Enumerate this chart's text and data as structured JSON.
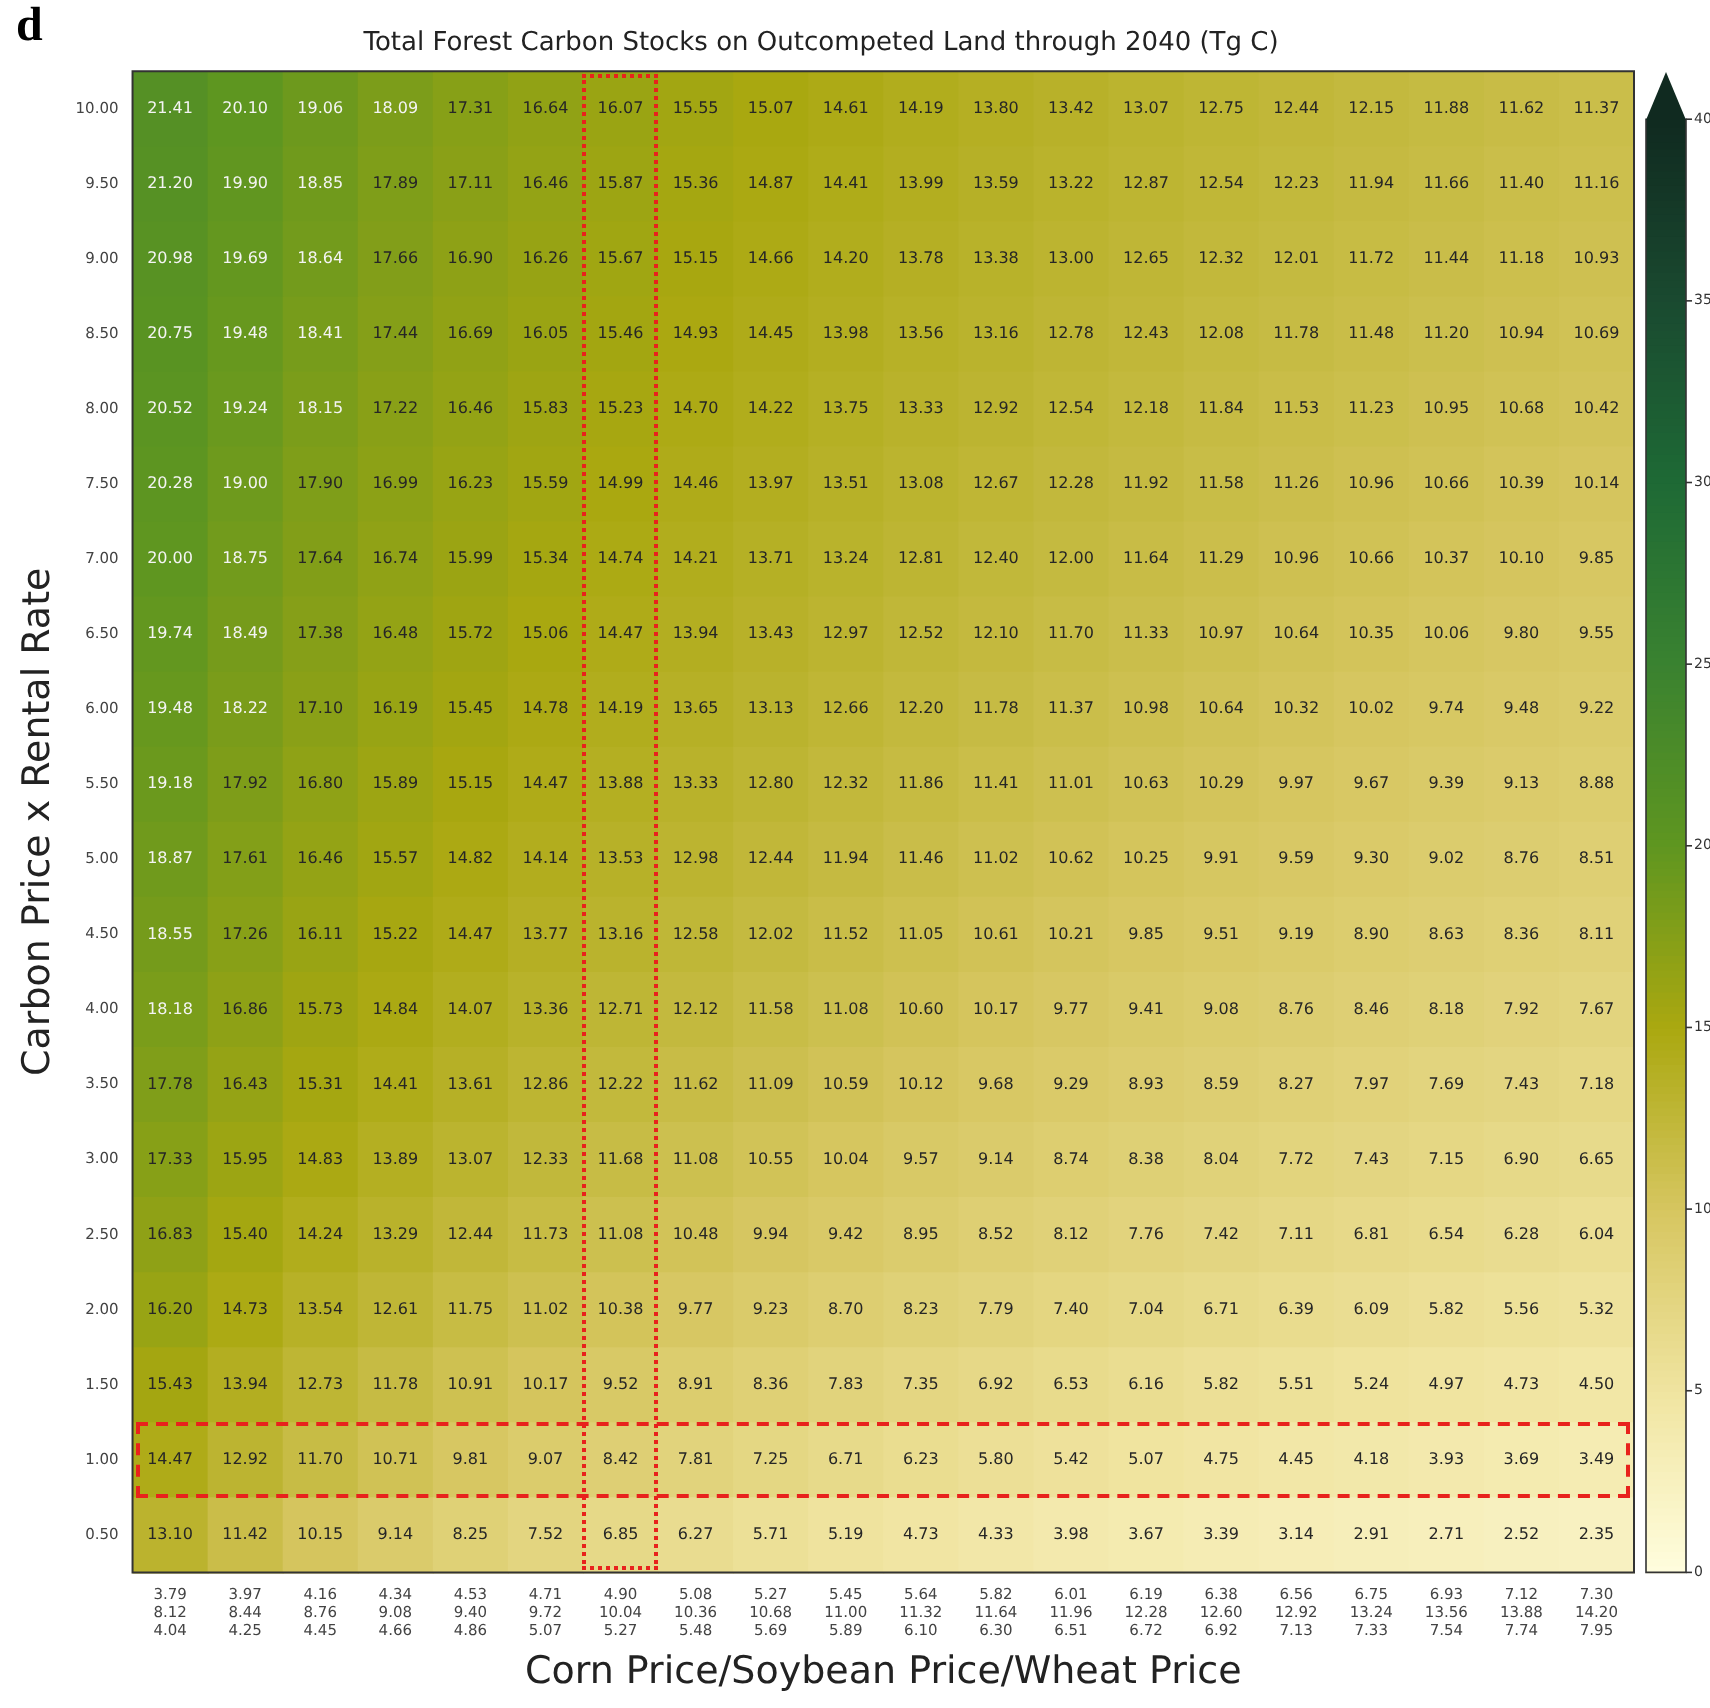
{
  "chart_data": {
    "type": "heatmap",
    "title": "Total Forest Carbon Stocks on Outcompeted Land through 2040 (Tg C)",
    "xlabel": "Corn Price/Soybean Price/Wheat Price",
    "ylabel": "Carbon Price x Rental Rate",
    "annotations": [
      "d"
    ],
    "categories": [
      "3.79\n8.12\n4.04",
      "3.97\n8.44\n4.25",
      "4.16\n8.76\n4.45",
      "4.34\n9.08\n4.66",
      "4.53\n9.40\n4.86",
      "4.71\n9.72\n5.07",
      "4.90\n10.04\n5.27",
      "5.08\n10.36\n5.48",
      "5.27\n10.68\n5.69",
      "5.45\n11.00\n5.89",
      "5.64\n11.32\n6.10",
      "5.82\n11.64\n6.30",
      "6.01\n11.96\n6.51",
      "6.19\n12.28\n6.72",
      "6.38\n12.60\n6.92",
      "6.56\n12.92\n7.13",
      "6.75\n13.24\n7.33",
      "6.93\n13.56\n7.54",
      "7.12\n13.88\n7.74",
      "7.30\n14.20\n7.95"
    ],
    "y_categories": [
      "10.00",
      "9.50",
      "9.00",
      "8.50",
      "8.00",
      "7.50",
      "7.00",
      "6.50",
      "6.00",
      "5.50",
      "5.00",
      "4.50",
      "4.00",
      "3.50",
      "3.00",
      "2.50",
      "2.00",
      "1.50",
      "1.00",
      "0.50"
    ],
    "cells": [
      [
        21.41,
        20.1,
        19.06,
        18.09,
        17.31,
        16.64,
        16.07,
        15.55,
        15.07,
        14.61,
        14.19,
        13.8,
        13.42,
        13.07,
        12.75,
        12.44,
        12.15,
        11.88,
        11.62,
        11.37
      ],
      [
        21.2,
        19.9,
        18.85,
        17.89,
        17.11,
        16.46,
        15.87,
        15.36,
        14.87,
        14.41,
        13.99,
        13.59,
        13.22,
        12.87,
        12.54,
        12.23,
        11.94,
        11.66,
        11.4,
        11.16
      ],
      [
        20.98,
        19.69,
        18.64,
        17.66,
        16.9,
        16.26,
        15.67,
        15.15,
        14.66,
        14.2,
        13.78,
        13.38,
        13.0,
        12.65,
        12.32,
        12.01,
        11.72,
        11.44,
        11.18,
        10.93
      ],
      [
        20.75,
        19.48,
        18.41,
        17.44,
        16.69,
        16.05,
        15.46,
        14.93,
        14.45,
        13.98,
        13.56,
        13.16,
        12.78,
        12.43,
        12.08,
        11.78,
        11.48,
        11.2,
        10.94,
        10.69
      ],
      [
        20.52,
        19.24,
        18.15,
        17.22,
        16.46,
        15.83,
        15.23,
        14.7,
        14.22,
        13.75,
        13.33,
        12.92,
        12.54,
        12.18,
        11.84,
        11.53,
        11.23,
        10.95,
        10.68,
        10.42
      ],
      [
        20.28,
        19.0,
        17.9,
        16.99,
        16.23,
        15.59,
        14.99,
        14.46,
        13.97,
        13.51,
        13.08,
        12.67,
        12.28,
        11.92,
        11.58,
        11.26,
        10.96,
        10.66,
        10.39,
        10.14
      ],
      [
        20.0,
        18.75,
        17.64,
        16.74,
        15.99,
        15.34,
        14.74,
        14.21,
        13.71,
        13.24,
        12.81,
        12.4,
        12.0,
        11.64,
        11.29,
        10.96,
        10.66,
        10.37,
        10.1,
        9.85
      ],
      [
        19.74,
        18.49,
        17.38,
        16.48,
        15.72,
        15.06,
        14.47,
        13.94,
        13.43,
        12.97,
        12.52,
        12.1,
        11.7,
        11.33,
        10.97,
        10.64,
        10.35,
        10.06,
        9.8,
        9.55
      ],
      [
        19.48,
        18.22,
        17.1,
        16.19,
        15.45,
        14.78,
        14.19,
        13.65,
        13.13,
        12.66,
        12.2,
        11.78,
        11.37,
        10.98,
        10.64,
        10.32,
        10.02,
        9.74,
        9.48,
        9.22
      ],
      [
        19.18,
        17.92,
        16.8,
        15.89,
        15.15,
        14.47,
        13.88,
        13.33,
        12.8,
        12.32,
        11.86,
        11.41,
        11.01,
        10.63,
        10.29,
        9.97,
        9.67,
        9.39,
        9.13,
        8.88
      ],
      [
        18.87,
        17.61,
        16.46,
        15.57,
        14.82,
        14.14,
        13.53,
        12.98,
        12.44,
        11.94,
        11.46,
        11.02,
        10.62,
        10.25,
        9.91,
        9.59,
        9.3,
        9.02,
        8.76,
        8.51
      ],
      [
        18.55,
        17.26,
        16.11,
        15.22,
        14.47,
        13.77,
        13.16,
        12.58,
        12.02,
        11.52,
        11.05,
        10.61,
        10.21,
        9.85,
        9.51,
        9.19,
        8.9,
        8.63,
        8.36,
        8.11
      ],
      [
        18.18,
        16.86,
        15.73,
        14.84,
        14.07,
        13.36,
        12.71,
        12.12,
        11.58,
        11.08,
        10.6,
        10.17,
        9.77,
        9.41,
        9.08,
        8.76,
        8.46,
        8.18,
        7.92,
        7.67
      ],
      [
        17.78,
        16.43,
        15.31,
        14.41,
        13.61,
        12.86,
        12.22,
        11.62,
        11.09,
        10.59,
        10.12,
        9.68,
        9.29,
        8.93,
        8.59,
        8.27,
        7.97,
        7.69,
        7.43,
        7.18
      ],
      [
        17.33,
        15.95,
        14.83,
        13.89,
        13.07,
        12.33,
        11.68,
        11.08,
        10.55,
        10.04,
        9.57,
        9.14,
        8.74,
        8.38,
        8.04,
        7.72,
        7.43,
        7.15,
        6.9,
        6.65
      ],
      [
        16.83,
        15.4,
        14.24,
        13.29,
        12.44,
        11.73,
        11.08,
        10.48,
        9.94,
        9.42,
        8.95,
        8.52,
        8.12,
        7.76,
        7.42,
        7.11,
        6.81,
        6.54,
        6.28,
        6.04
      ],
      [
        16.2,
        14.73,
        13.54,
        12.61,
        11.75,
        11.02,
        10.38,
        9.77,
        9.23,
        8.7,
        8.23,
        7.79,
        7.4,
        7.04,
        6.71,
        6.39,
        6.09,
        5.82,
        5.56,
        5.32
      ],
      [
        15.43,
        13.94,
        12.73,
        11.78,
        10.91,
        10.17,
        9.52,
        8.91,
        8.36,
        7.83,
        7.35,
        6.92,
        6.53,
        6.16,
        5.82,
        5.51,
        5.24,
        4.97,
        4.73,
        4.5
      ],
      [
        14.47,
        12.92,
        11.7,
        10.71,
        9.81,
        9.07,
        8.42,
        7.81,
        7.25,
        6.71,
        6.23,
        5.8,
        5.42,
        5.07,
        4.75,
        4.45,
        4.18,
        3.93,
        3.69,
        3.49
      ],
      [
        13.1,
        11.42,
        10.15,
        9.14,
        8.25,
        7.52,
        6.85,
        6.27,
        5.71,
        5.19,
        4.73,
        4.33,
        3.98,
        3.67,
        3.39,
        3.14,
        2.91,
        2.71,
        2.52,
        2.35
      ]
    ],
    "cell_labels": [
      [
        "21.41",
        "20.10",
        "19.06",
        "18.09",
        "17.31",
        "16.64",
        "16.07",
        "15.55",
        "15.07",
        "14.61",
        "14.19",
        "13.80",
        "13.42",
        "13.07",
        "12.75",
        "12.44",
        "12.15",
        "11.88",
        "11.62",
        "11.37"
      ],
      [
        "21.20",
        "19.90",
        "18.85",
        "17.89",
        "17.11",
        "16.46",
        "15.87",
        "15.36",
        "14.87",
        "14.41",
        "13.99",
        "13.59",
        "13.22",
        "12.87",
        "12.54",
        "12.23",
        "11.94",
        "11.66",
        "11.40",
        "11.16"
      ],
      [
        "20.98",
        "19.69",
        "18.64",
        "17.66",
        "16.90",
        "16.26",
        "15.67",
        "15.15",
        "14.66",
        "14.20",
        "13.78",
        "13.38",
        "13.00",
        "12.65",
        "12.32",
        "12.01",
        "11.72",
        "11.44",
        "11.18",
        "10.93"
      ],
      [
        "20.75",
        "19.48",
        "18.41",
        "17.44",
        "16.69",
        "16.05",
        "15.46",
        "14.93",
        "14.45",
        "13.98",
        "13.56",
        "13.16",
        "12.78",
        "12.43",
        "12.08",
        "11.78",
        "11.48",
        "11.20",
        "10.94",
        "10.69"
      ],
      [
        "20.52",
        "19.24",
        "18.15",
        "17.22",
        "16.46",
        "15.83",
        "15.23",
        "14.70",
        "14.22",
        "13.75",
        "13.33",
        "12.92",
        "12.54",
        "12.18",
        "11.84",
        "11.53",
        "11.23",
        "10.95",
        "10.68",
        "10.42"
      ],
      [
        "20.28",
        "19.00",
        "17.90",
        "16.99",
        "16.23",
        "15.59",
        "14.99",
        "14.46",
        "13.97",
        "13.51",
        "13.08",
        "12.67",
        "12.28",
        "11.92",
        "11.58",
        "11.26",
        "10.96",
        "10.66",
        "10.39",
        "10.14"
      ],
      [
        "20.00",
        "18.75",
        "17.64",
        "16.74",
        "15.99",
        "15.34",
        "14.74",
        "14.21",
        "13.71",
        "13.24",
        "12.81",
        "12.40",
        "12.00",
        "11.64",
        "11.29",
        "10.96",
        "10.66",
        "10.37",
        "10.10",
        "9.85"
      ],
      [
        "19.74",
        "18.49",
        "17.38",
        "16.48",
        "15.72",
        "15.06",
        "14.47",
        "13.94",
        "13.43",
        "12.97",
        "12.52",
        "12.10",
        "11.70",
        "11.33",
        "10.97",
        "10.64",
        "10.35",
        "10.06",
        "9.80",
        "9.55"
      ],
      [
        "19.48",
        "18.22",
        "17.10",
        "16.19",
        "15.45",
        "14.78",
        "14.19",
        "13.65",
        "13.13",
        "12.66",
        "12.20",
        "11.78",
        "11.37",
        "10.98",
        "10.64",
        "10.32",
        "10.02",
        "9.74",
        "9.48",
        "9.22"
      ],
      [
        "19.18",
        "17.92",
        "16.80",
        "15.89",
        "15.15",
        "14.47",
        "13.88",
        "13.33",
        "12.80",
        "12.32",
        "11.86",
        "11.41",
        "11.01",
        "10.63",
        "10.29",
        "9.97",
        "9.67",
        "9.39",
        "9.13",
        "8.88"
      ],
      [
        "18.87",
        "17.61",
        "16.46",
        "15.57",
        "14.82",
        "14.14",
        "13.53",
        "12.98",
        "12.44",
        "11.94",
        "11.46",
        "11.02",
        "10.62",
        "10.25",
        "9.91",
        "9.59",
        "9.30",
        "9.02",
        "8.76",
        "8.51"
      ],
      [
        "18.55",
        "17.26",
        "16.11",
        "15.22",
        "14.47",
        "13.77",
        "13.16",
        "12.58",
        "12.02",
        "11.52",
        "11.05",
        "10.61",
        "10.21",
        "9.85",
        "9.51",
        "9.19",
        "8.90",
        "8.63",
        "8.36",
        "8.11"
      ],
      [
        "18.18",
        "16.86",
        "15.73",
        "14.84",
        "14.07",
        "13.36",
        "12.71",
        "12.12",
        "11.58",
        "11.08",
        "10.60",
        "10.17",
        "9.77",
        "9.41",
        "9.08",
        "8.76",
        "8.46",
        "8.18",
        "7.92",
        "7.67"
      ],
      [
        "17.78",
        "16.43",
        "15.31",
        "14.41",
        "13.61",
        "12.86",
        "12.22",
        "11.62",
        "11.09",
        "10.59",
        "10.12",
        "9.68",
        "9.29",
        "8.93",
        "8.59",
        "8.27",
        "7.97",
        "7.69",
        "7.43",
        "7.18"
      ],
      [
        "17.33",
        "15.95",
        "14.83",
        "13.89",
        "13.07",
        "12.33",
        "11.68",
        "11.08",
        "10.55",
        "10.04",
        "9.57",
        "9.14",
        "8.74",
        "8.38",
        "8.04",
        "7.72",
        "7.43",
        "7.15",
        "6.90",
        "6.65"
      ],
      [
        "16.83",
        "15.40",
        "14.24",
        "13.29",
        "12.44",
        "11.73",
        "11.08",
        "10.48",
        "9.94",
        "9.42",
        "8.95",
        "8.52",
        "8.12",
        "7.76",
        "7.42",
        "7.11",
        "6.81",
        "6.54",
        "6.28",
        "6.04"
      ],
      [
        "16.20",
        "14.73",
        "13.54",
        "12.61",
        "11.75",
        "11.02",
        "10.38",
        "9.77",
        "9.23",
        "8.70",
        "8.23",
        "7.79",
        "7.40",
        "7.04",
        "6.71",
        "6.39",
        "6.09",
        "5.82",
        "5.56",
        "5.32"
      ],
      [
        "15.43",
        "13.94",
        "12.73",
        "11.78",
        "10.91",
        "10.17",
        "9.52",
        "8.91",
        "8.36",
        "7.83",
        "7.35",
        "6.92",
        "6.53",
        "6.16",
        "5.82",
        "5.51",
        "5.24",
        "4.97",
        "4.73",
        "4.50"
      ],
      [
        "14.47",
        "12.92",
        "11.70",
        "10.71",
        "9.81",
        "9.07",
        "8.42",
        "7.81",
        "7.25",
        "6.71",
        "6.23",
        "5.80",
        "5.42",
        "5.07",
        "4.75",
        "4.45",
        "4.18",
        "3.93",
        "3.69",
        "3.49"
      ],
      [
        "13.10",
        "11.42",
        "10.15",
        "9.14",
        "8.25",
        "7.52",
        "6.85",
        "6.27",
        "5.71",
        "5.19",
        "4.73",
        "4.33",
        "3.98",
        "3.67",
        "3.39",
        "3.14",
        "2.91",
        "2.71",
        "2.52",
        "2.35"
      ]
    ],
    "clim": [
      0,
      40
    ],
    "cticks": [
      0,
      5,
      10,
      15,
      20,
      25,
      30,
      35,
      40
    ],
    "grid": false,
    "legend": false
  }
}
